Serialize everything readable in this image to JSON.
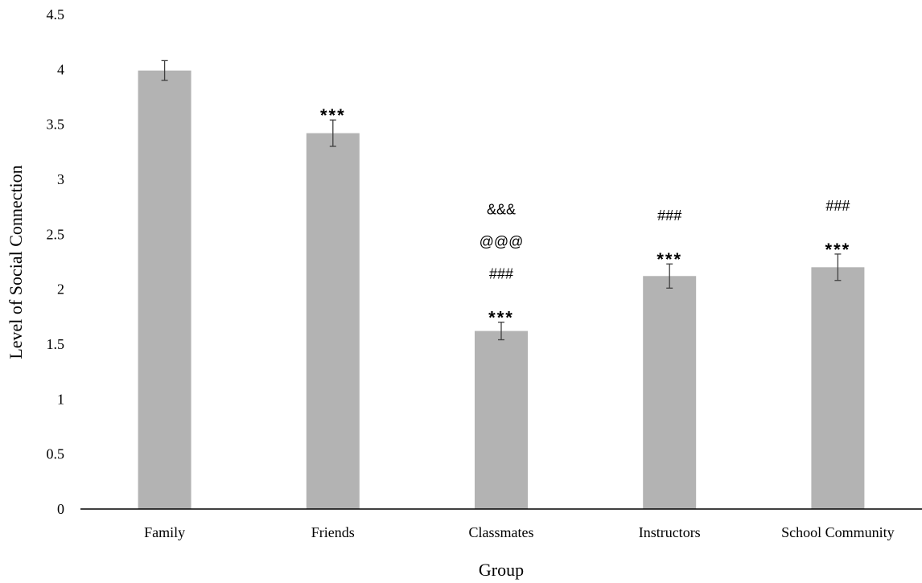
{
  "chart_data": {
    "type": "bar",
    "categories": [
      "Family",
      "Friends",
      "Classmates",
      "Instructors",
      "School Community"
    ],
    "values": [
      3.99,
      3.42,
      1.62,
      2.12,
      2.2
    ],
    "error": [
      0.09,
      0.12,
      0.08,
      0.11,
      0.12
    ],
    "annotations": [
      [],
      [
        "***"
      ],
      [
        "***",
        "###",
        "@@@",
        "&&&"
      ],
      [
        "***",
        "###"
      ],
      [
        "***",
        "###"
      ]
    ],
    "title": "",
    "xlabel": "Group",
    "ylabel": "Level of Social Connection",
    "ylim": [
      0,
      4.5
    ],
    "yticks": [
      "0",
      "0.5",
      "1",
      "1.5",
      "2",
      "2.5",
      "3",
      "3.5",
      "4",
      "4.5"
    ],
    "bar_color": "#b3b3b3",
    "errorbar_color": "#404040",
    "axis_color": "#000000",
    "grid": false,
    "legend": "none"
  }
}
